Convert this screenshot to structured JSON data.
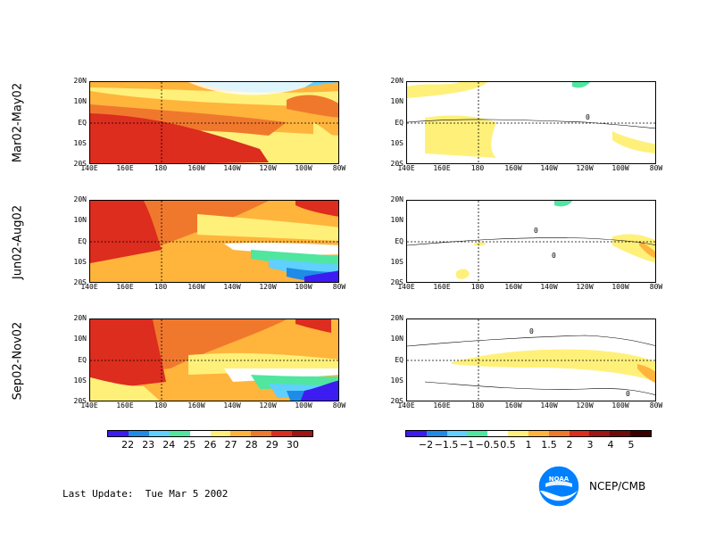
{
  "row_labels": [
    "Mar02-May02",
    "Jun02-Aug02",
    "Sep02-Nov02"
  ],
  "lat_ticks": [
    "20N",
    "10N",
    "EQ",
    "10S",
    "20S"
  ],
  "lon_ticks": [
    "140E",
    "160E",
    "180",
    "160W",
    "140W",
    "120W",
    "100W",
    "80W"
  ],
  "sst_colorbar": {
    "labels": [
      "22",
      "23",
      "24",
      "25",
      "26",
      "27",
      "28",
      "29",
      "30"
    ],
    "colors": [
      "#3c1cf0",
      "#1e8ce6",
      "#5fd0ff",
      "#50e6a0",
      "#ffffff",
      "#fff07a",
      "#ffb43c",
      "#f0782d",
      "#dc2d1e",
      "#a01414"
    ]
  },
  "anom_colorbar": {
    "labels": [
      "−2",
      "−1.5",
      "−1",
      "−0.5",
      "0.5",
      "1",
      "1.5",
      "2",
      "3",
      "4",
      "5"
    ],
    "colors": [
      "#3c1cf0",
      "#1e8ce6",
      "#5fd0ff",
      "#50e6a0",
      "#ffffff",
      "#fff07a",
      "#ffb43c",
      "#f0782d",
      "#dc2d1e",
      "#a01414",
      "#6e0a0a",
      "#3c0000"
    ]
  },
  "contour_labels": [
    "0",
    "0",
    "0",
    "0",
    "0",
    "0",
    "0",
    "0"
  ],
  "footer": {
    "last_update": "Last Update:  Tue Mar 5 2002",
    "agency": "NCEP/CMB",
    "logo_text": "NOAA"
  }
}
